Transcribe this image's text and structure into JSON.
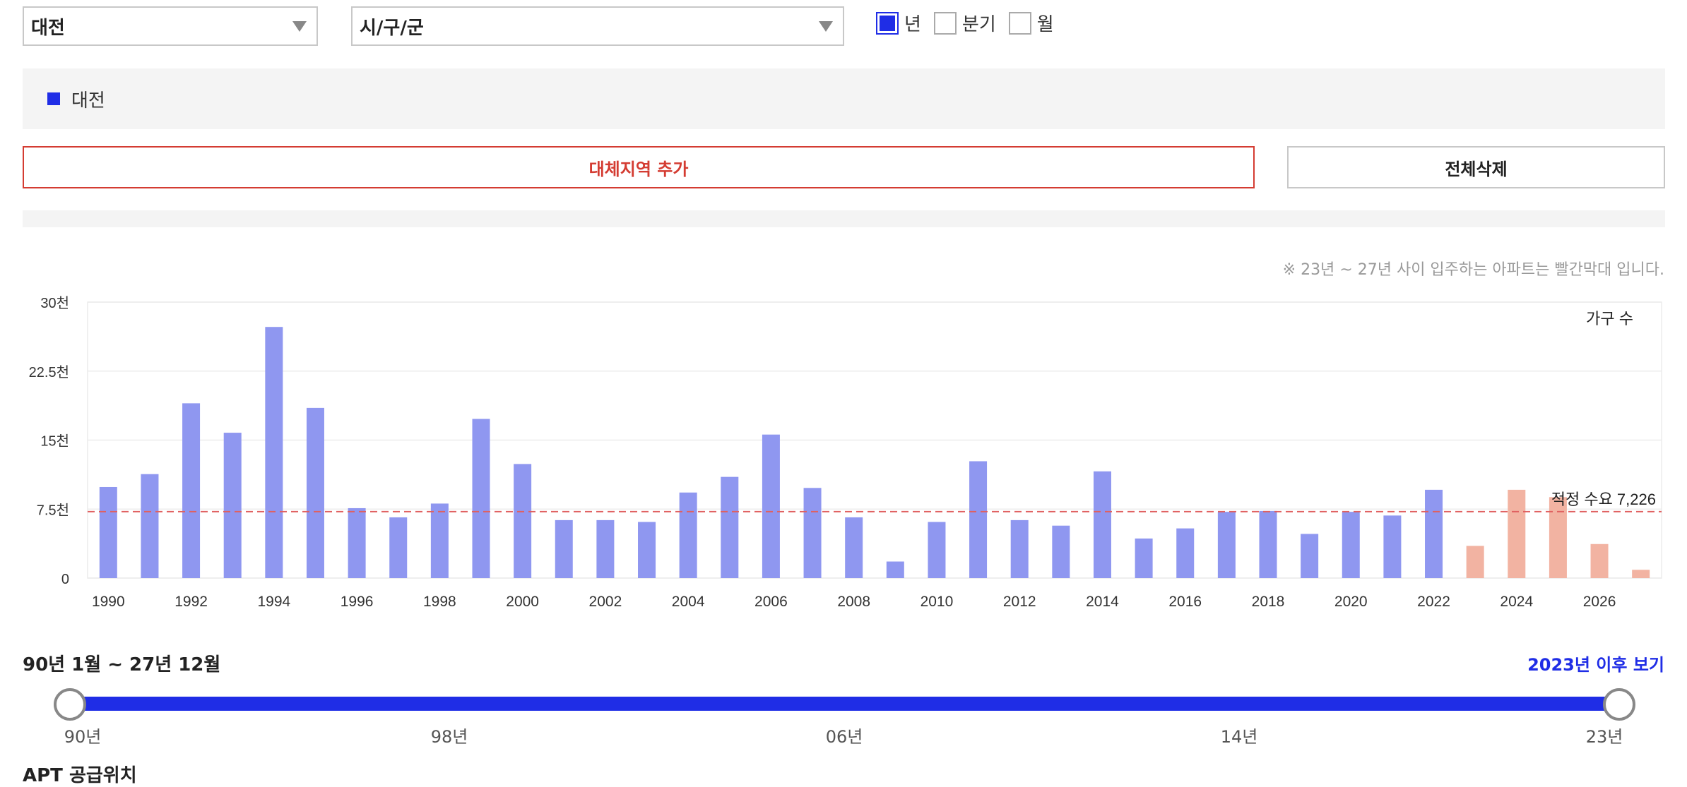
{
  "filters": {
    "city": "대전",
    "district": "시/구/군",
    "period_options": [
      {
        "label": "년",
        "checked": true
      },
      {
        "label": "분기",
        "checked": false
      },
      {
        "label": "월",
        "checked": false
      }
    ]
  },
  "legend": {
    "label": "대전",
    "color": "#1f2de6"
  },
  "buttons": {
    "add_region": "대체지역 추가",
    "clear_all": "전체삭제"
  },
  "note": "※ 23년 ~ 27년 사이 입주하는 아파트는 빨간막대 입니다.",
  "chart_data": {
    "type": "bar",
    "series_label": "가구 수",
    "ylim": [
      0,
      30000
    ],
    "yticks": [
      {
        "value": 0,
        "label": "0"
      },
      {
        "value": 7500,
        "label": "7.5천"
      },
      {
        "value": 15000,
        "label": "15천"
      },
      {
        "value": 22500,
        "label": "22.5천"
      },
      {
        "value": 30000,
        "label": "30천"
      }
    ],
    "categories": [
      "1990",
      "1991",
      "1992",
      "1993",
      "1994",
      "1995",
      "1996",
      "1997",
      "1998",
      "1999",
      "2000",
      "2001",
      "2002",
      "2003",
      "2004",
      "2005",
      "2006",
      "2007",
      "2008",
      "2009",
      "2010",
      "2011",
      "2012",
      "2013",
      "2014",
      "2015",
      "2016",
      "2017",
      "2018",
      "2019",
      "2020",
      "2021",
      "2022",
      "2023",
      "2024",
      "2025",
      "2026",
      "2027"
    ],
    "xtick_labels": [
      "1990",
      "",
      "1992",
      "",
      "1994",
      "",
      "1996",
      "",
      "1998",
      "",
      "2000",
      "",
      "2002",
      "",
      "2004",
      "",
      "2006",
      "",
      "2008",
      "",
      "2010",
      "",
      "2012",
      "",
      "2014",
      "",
      "2016",
      "",
      "2018",
      "",
      "2020",
      "",
      "2022",
      "",
      "2024",
      "",
      "2026",
      ""
    ],
    "values": [
      9900,
      11300,
      19000,
      15800,
      27300,
      18500,
      7600,
      6600,
      8100,
      17300,
      12400,
      6300,
      6300,
      6100,
      9300,
      11000,
      15600,
      9800,
      6600,
      1800,
      6100,
      12700,
      6300,
      5700,
      11600,
      4300,
      5400,
      7200,
      7300,
      4800,
      7200,
      6800,
      9600,
      3500,
      9600,
      8800,
      3700,
      900
    ],
    "highlight_from": "2023",
    "bar_color": "#8f97f0",
    "highlight_color": "#f2b3a2",
    "reference_line": {
      "value": 7226,
      "label": "적정 수요 7,226",
      "color": "#e06060"
    },
    "grid": true
  },
  "range": {
    "label": "90년 1월 ~ 27년 12월",
    "after_link": "2023년 이후 보기",
    "ticks": [
      "90년",
      "98년",
      "06년",
      "14년",
      "23년"
    ]
  },
  "section_title": "APT 공급위치"
}
